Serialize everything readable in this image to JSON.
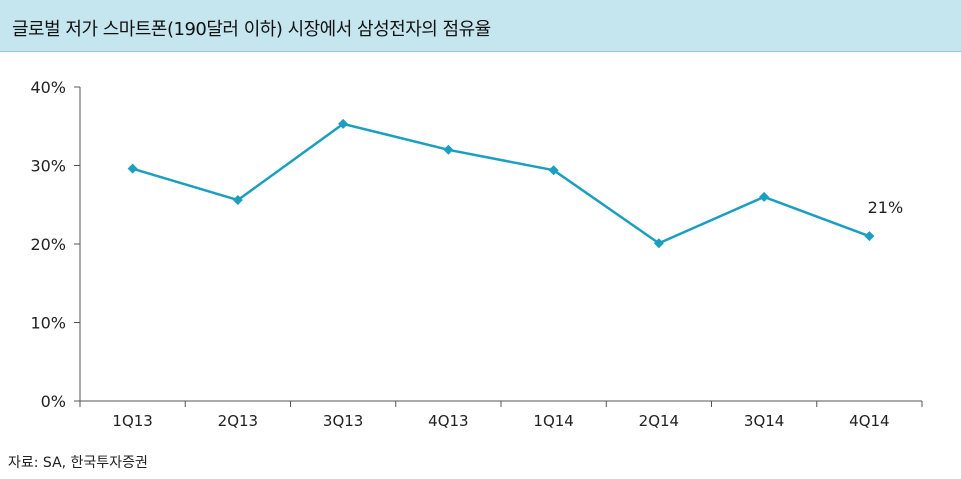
{
  "title": "글로벌 저가 스마트폰(190달러 이하) 시장에서 삼성전자의 점유율",
  "source": "자료: SA, 한국투자증권",
  "colors": {
    "title_bg": "#c6e6ef",
    "line": "#1b9fc0",
    "axis": "#555555"
  },
  "chart_data": {
    "type": "line",
    "title": "",
    "xlabel": "",
    "ylabel": "",
    "categories": [
      "1Q13",
      "2Q13",
      "3Q13",
      "4Q13",
      "1Q14",
      "2Q14",
      "3Q14",
      "4Q14"
    ],
    "series": [
      {
        "values": [
          29.6,
          25.6,
          35.3,
          32.0,
          29.4,
          20.1,
          26.0,
          21.0
        ]
      }
    ],
    "ylim": [
      0,
      40
    ],
    "yticks": [
      0,
      10,
      20,
      30,
      40
    ],
    "ytick_labels": [
      "0%",
      "10%",
      "20%",
      "30%",
      "40%"
    ],
    "annotations": [
      {
        "category": "4Q14",
        "text": "21%"
      }
    ],
    "grid": false,
    "legend": "none"
  }
}
